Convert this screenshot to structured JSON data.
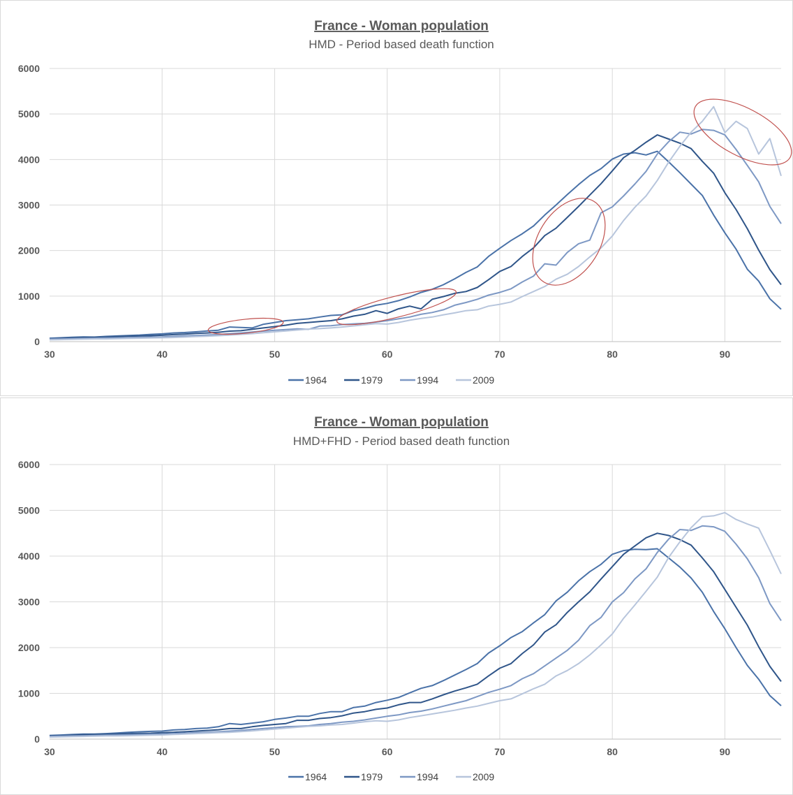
{
  "chart_data": [
    {
      "type": "line",
      "title": "France - Woman population",
      "subtitle": "HMD - Period based death function",
      "xlim": [
        30,
        95
      ],
      "ylim": [
        0,
        6000
      ],
      "xticks": [
        30,
        40,
        50,
        60,
        70,
        80,
        90
      ],
      "yticks": [
        0,
        1000,
        2000,
        3000,
        4000,
        5000,
        6000
      ],
      "legend_position": "bottom",
      "grid": true,
      "annotations": "red ellipses highlighting irregular segments",
      "x": [
        30,
        31,
        32,
        33,
        34,
        35,
        36,
        37,
        38,
        39,
        40,
        41,
        42,
        43,
        44,
        45,
        46,
        47,
        48,
        49,
        50,
        51,
        52,
        53,
        54,
        55,
        56,
        57,
        58,
        59,
        60,
        61,
        62,
        63,
        64,
        65,
        66,
        67,
        68,
        69,
        70,
        71,
        72,
        73,
        74,
        75,
        76,
        77,
        78,
        79,
        80,
        81,
        82,
        83,
        84,
        85,
        86,
        87,
        88,
        89,
        90,
        91,
        92,
        93,
        94,
        95
      ],
      "series": [
        {
          "name": "1964",
          "color": "#4a72a8",
          "values": [
            75,
            85,
            95,
            105,
            100,
            115,
            125,
            135,
            145,
            160,
            170,
            190,
            200,
            215,
            235,
            250,
            320,
            310,
            300,
            380,
            420,
            460,
            480,
            500,
            540,
            575,
            590,
            680,
            730,
            800,
            840,
            900,
            980,
            1080,
            1150,
            1250,
            1380,
            1520,
            1640,
            1870,
            2050,
            2220,
            2370,
            2540,
            2780,
            3000,
            3230,
            3450,
            3650,
            3800,
            4010,
            4120,
            4150,
            4100,
            4180,
            3950,
            3710,
            3460,
            3210,
            2780,
            2390,
            2030,
            1590,
            1330,
            940,
            710
          ]
        },
        {
          "name": "1979",
          "color": "#2f5589",
          "values": [
            60,
            70,
            80,
            90,
            95,
            100,
            110,
            120,
            125,
            130,
            140,
            155,
            165,
            180,
            190,
            205,
            230,
            240,
            270,
            300,
            330,
            360,
            400,
            420,
            440,
            460,
            500,
            560,
            600,
            680,
            620,
            720,
            780,
            720,
            930,
            990,
            1060,
            1100,
            1190,
            1360,
            1540,
            1650,
            1870,
            2060,
            2330,
            2490,
            2730,
            2970,
            3220,
            3470,
            3750,
            4040,
            4200,
            4380,
            4540,
            4450,
            4360,
            4240,
            3960,
            3700,
            3270,
            2900,
            2480,
            2010,
            1580,
            1250
          ]
        },
        {
          "name": "1994",
          "color": "#7d98c4",
          "values": [
            55,
            60,
            65,
            70,
            75,
            80,
            85,
            90,
            95,
            100,
            105,
            115,
            125,
            135,
            145,
            155,
            175,
            190,
            210,
            230,
            250,
            265,
            280,
            270,
            340,
            350,
            375,
            390,
            400,
            430,
            460,
            500,
            540,
            600,
            640,
            700,
            800,
            860,
            930,
            1020,
            1080,
            1160,
            1310,
            1440,
            1710,
            1680,
            1960,
            2150,
            2230,
            2830,
            2960,
            3200,
            3460,
            3740,
            4120,
            4390,
            4600,
            4560,
            4660,
            4640,
            4540,
            4220,
            3870,
            3510,
            2970,
            2590
          ]
        },
        {
          "name": "2009",
          "color": "#b7c5dc",
          "values": [
            40,
            45,
            50,
            55,
            60,
            60,
            65,
            70,
            75,
            80,
            85,
            90,
            100,
            110,
            120,
            130,
            145,
            160,
            175,
            195,
            215,
            235,
            255,
            275,
            285,
            300,
            320,
            345,
            370,
            395,
            385,
            420,
            470,
            510,
            540,
            590,
            630,
            680,
            700,
            780,
            820,
            870,
            990,
            1100,
            1210,
            1370,
            1480,
            1650,
            1860,
            2060,
            2320,
            2660,
            2950,
            3200,
            3540,
            3940,
            4290,
            4600,
            4840,
            5160,
            4590,
            4840,
            4680,
            4120,
            4460,
            3640
          ]
        }
      ]
    },
    {
      "type": "line",
      "title": "France - Woman  population",
      "subtitle": "HMD+FHD - Period based death function",
      "xlim": [
        30,
        95
      ],
      "ylim": [
        0,
        6000
      ],
      "xticks": [
        30,
        40,
        50,
        60,
        70,
        80,
        90
      ],
      "yticks": [
        0,
        1000,
        2000,
        3000,
        4000,
        5000,
        6000
      ],
      "legend_position": "bottom",
      "grid": true,
      "x": [
        30,
        31,
        32,
        33,
        34,
        35,
        36,
        37,
        38,
        39,
        40,
        41,
        42,
        43,
        44,
        45,
        46,
        47,
        48,
        49,
        50,
        51,
        52,
        53,
        54,
        55,
        56,
        57,
        58,
        59,
        60,
        61,
        62,
        63,
        64,
        65,
        66,
        67,
        68,
        69,
        70,
        71,
        72,
        73,
        74,
        75,
        76,
        77,
        78,
        79,
        80,
        81,
        82,
        83,
        84,
        85,
        86,
        87,
        88,
        89,
        90,
        91,
        92,
        93,
        94,
        95
      ],
      "series": [
        {
          "name": "1964",
          "color": "#4a72a8",
          "values": [
            80,
            90,
            100,
            110,
            110,
            120,
            135,
            150,
            160,
            170,
            175,
            200,
            210,
            230,
            240,
            270,
            340,
            320,
            350,
            380,
            430,
            460,
            500,
            500,
            560,
            600,
            600,
            690,
            720,
            800,
            850,
            910,
            1010,
            1110,
            1170,
            1280,
            1400,
            1520,
            1650,
            1880,
            2040,
            2220,
            2350,
            2540,
            2720,
            3020,
            3210,
            3460,
            3660,
            3820,
            4040,
            4120,
            4150,
            4140,
            4160,
            3960,
            3760,
            3520,
            3210,
            2790,
            2410,
            2000,
            1610,
            1310,
            950,
            730
          ]
        },
        {
          "name": "1979",
          "color": "#2f5589",
          "values": [
            70,
            75,
            85,
            95,
            100,
            105,
            110,
            120,
            125,
            130,
            140,
            150,
            160,
            175,
            190,
            205,
            230,
            230,
            270,
            300,
            320,
            340,
            410,
            410,
            450,
            470,
            510,
            570,
            600,
            650,
            680,
            750,
            800,
            800,
            880,
            970,
            1050,
            1120,
            1200,
            1380,
            1550,
            1650,
            1870,
            2060,
            2340,
            2500,
            2770,
            3000,
            3220,
            3500,
            3770,
            4040,
            4220,
            4400,
            4500,
            4450,
            4360,
            4240,
            3960,
            3660,
            3270,
            2880,
            2490,
            2020,
            1590,
            1260
          ]
        },
        {
          "name": "1994",
          "color": "#7d98c4",
          "values": [
            60,
            65,
            70,
            75,
            80,
            85,
            90,
            95,
            100,
            105,
            110,
            120,
            130,
            140,
            150,
            160,
            175,
            190,
            210,
            230,
            250,
            270,
            280,
            290,
            320,
            340,
            370,
            390,
            420,
            460,
            500,
            530,
            580,
            610,
            660,
            720,
            780,
            840,
            930,
            1020,
            1090,
            1170,
            1320,
            1430,
            1600,
            1770,
            1940,
            2160,
            2480,
            2660,
            3000,
            3200,
            3500,
            3720,
            4080,
            4370,
            4580,
            4560,
            4660,
            4640,
            4540,
            4260,
            3940,
            3530,
            2960,
            2590
          ]
        },
        {
          "name": "2009",
          "color": "#b7c5dc",
          "values": [
            45,
            50,
            55,
            60,
            65,
            70,
            70,
            75,
            80,
            85,
            90,
            100,
            110,
            120,
            130,
            140,
            150,
            165,
            180,
            200,
            220,
            240,
            260,
            280,
            290,
            310,
            320,
            350,
            380,
            400,
            390,
            420,
            470,
            510,
            550,
            590,
            630,
            680,
            720,
            780,
            840,
            880,
            990,
            1100,
            1200,
            1380,
            1500,
            1650,
            1840,
            2060,
            2300,
            2640,
            2930,
            3230,
            3540,
            3970,
            4310,
            4620,
            4860,
            4880,
            4950,
            4800,
            4700,
            4610,
            4120,
            3610
          ]
        }
      ]
    }
  ]
}
